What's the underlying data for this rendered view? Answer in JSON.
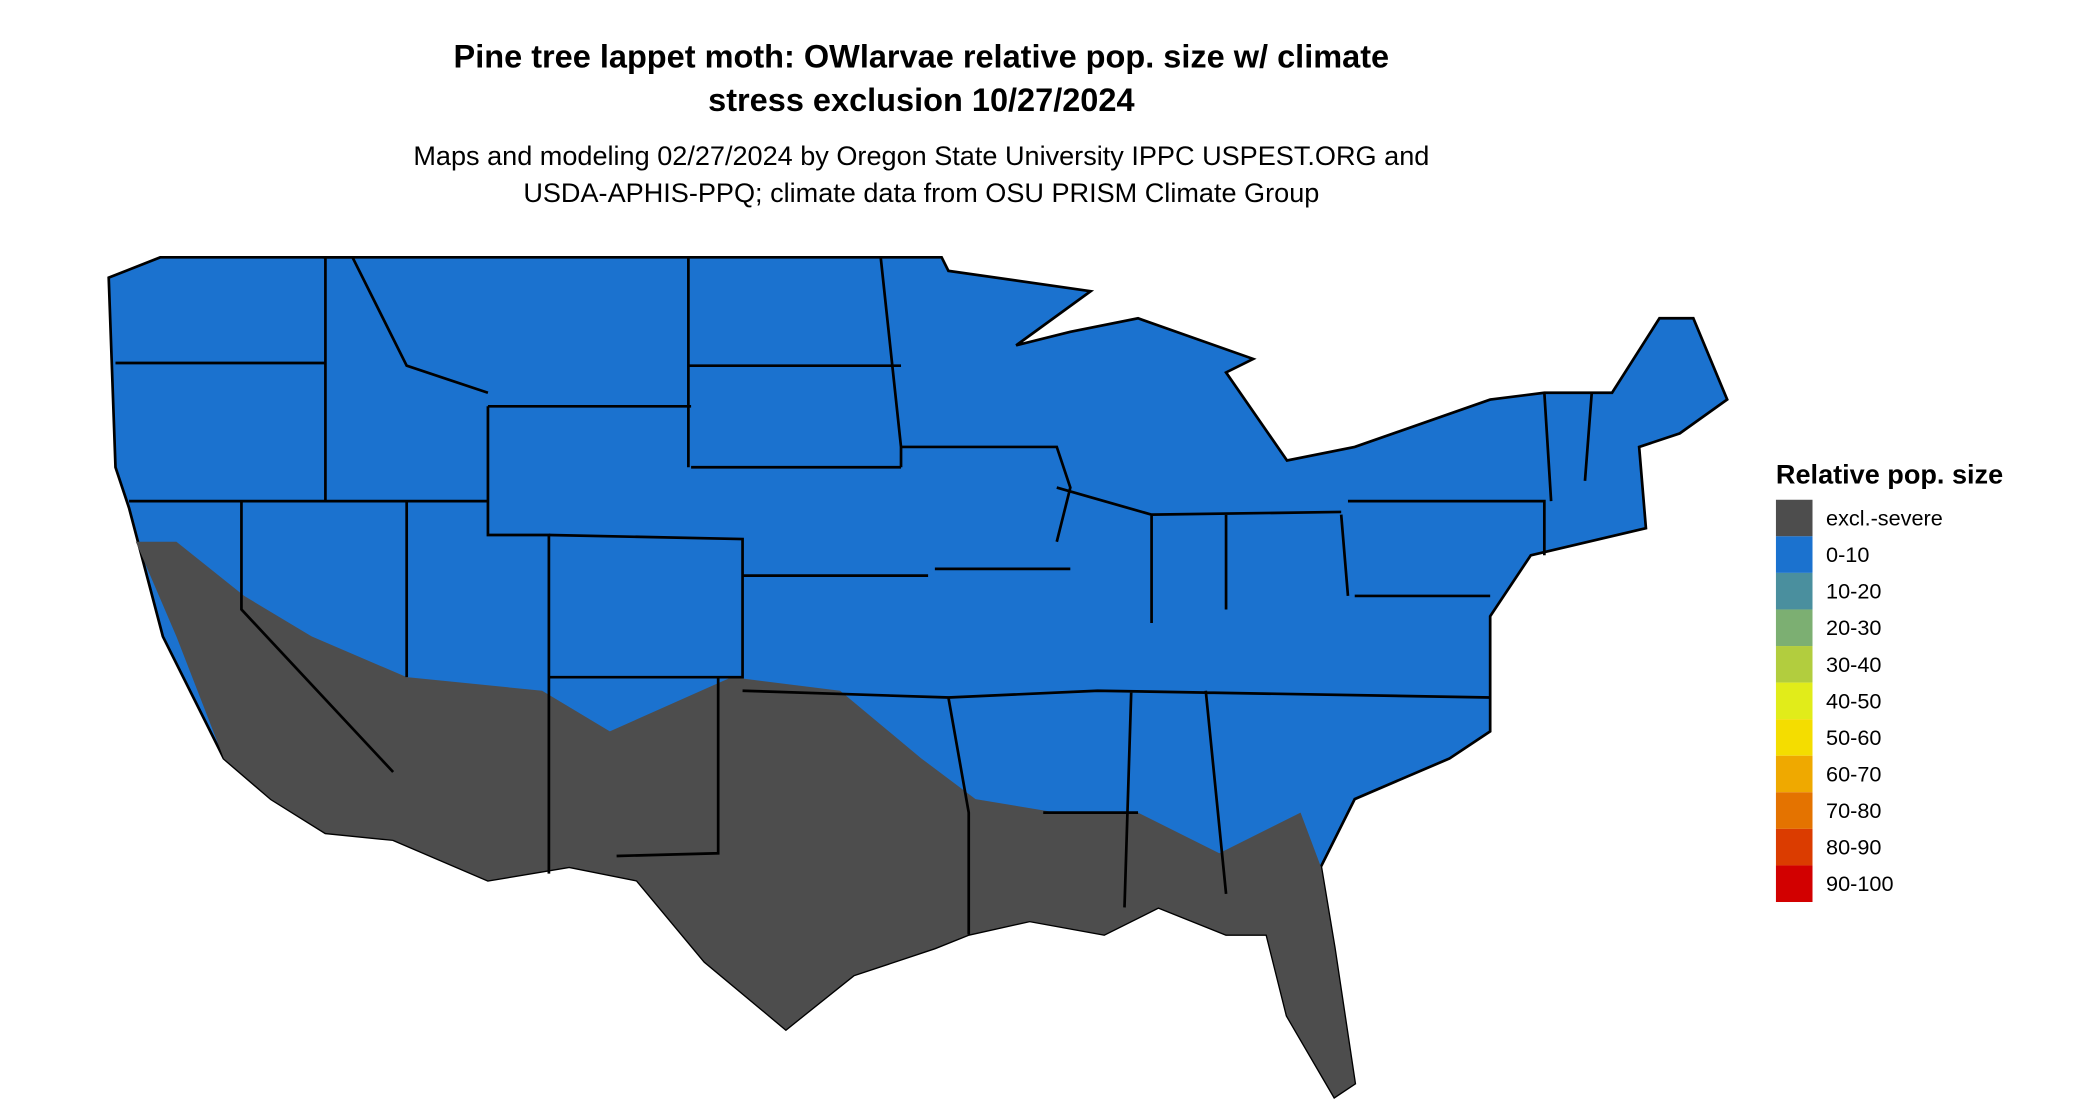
{
  "title": [
    "Pine tree lappet moth: OWlarvae relative pop. size w/ climate",
    "stress exclusion 10/27/2024"
  ],
  "subtitle": [
    "Maps and modeling 02/27/2024 by Oregon State University IPPC USPEST.ORG and",
    "USDA-APHIS-PPQ; climate data from OSU PRISM Climate Group"
  ],
  "legend": {
    "title": "Relative pop. size",
    "items": [
      {
        "label": "excl.-severe",
        "color": "#4d4d4d"
      },
      {
        "label": "0-10",
        "color": "#1b72cf"
      },
      {
        "label": "10-20",
        "color": "#4a8f9e"
      },
      {
        "label": "20-30",
        "color": "#7caf72"
      },
      {
        "label": "30-40",
        "color": "#b2cd3e"
      },
      {
        "label": "40-50",
        "color": "#e1ec1a"
      },
      {
        "label": "50-60",
        "color": "#f4dd00"
      },
      {
        "label": "60-70",
        "color": "#efa900"
      },
      {
        "label": "70-80",
        "color": "#e47300"
      },
      {
        "label": "80-90",
        "color": "#db3c00"
      },
      {
        "label": "90-100",
        "color": "#d20000"
      }
    ]
  }
}
